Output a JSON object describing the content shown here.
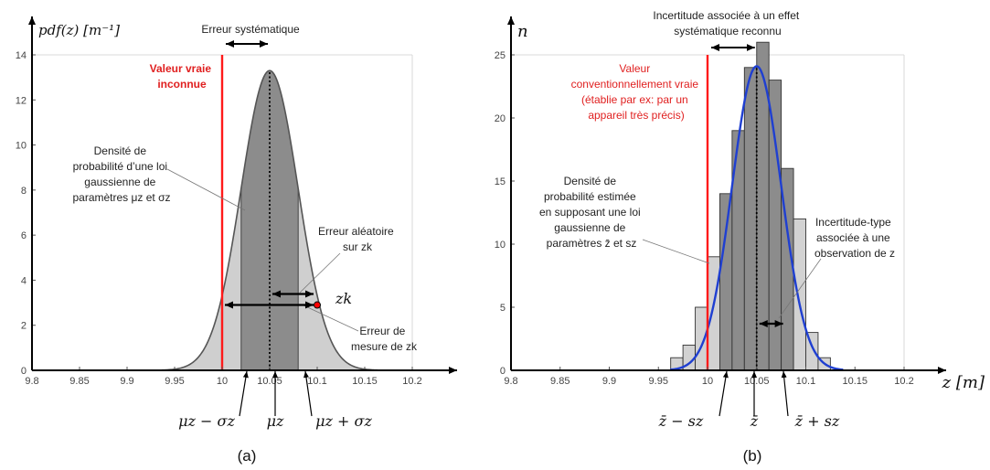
{
  "panel_a": {
    "y_axis_label": "pdf(z) [m⁻¹]",
    "caption": "(a)",
    "annotations": {
      "systematic_error": "Erreur systématique",
      "true_value": [
        "Valeur vraie",
        "inconnue"
      ],
      "density": [
        "Densité de",
        "probabilité d’une loi",
        "gaussienne de",
        "paramètres μz et σz"
      ],
      "random_error": [
        "Erreur aléatoire",
        "sur zk"
      ],
      "measurement_error": [
        "Erreur de",
        "mesure de zk"
      ],
      "point_label": "zk"
    },
    "below_labels": {
      "minus": "μz − σz",
      "mean": "μz",
      "plus": "μz + σz"
    }
  },
  "panel_b": {
    "y_axis_label": "n",
    "x_axis_label": "z [m]",
    "caption": "(b)",
    "annotations": {
      "systematic_uncertainty": [
        "Incertitude associée à un effet",
        "systématique reconnu"
      ],
      "conventional_value": [
        "Valeur",
        "conventionnellement vraie",
        "(établie par ex: par un",
        "appareil très précis)"
      ],
      "estimated_density": [
        "Densité de",
        "probabilité estimée",
        "en supposant une loi",
        "gaussienne de",
        "paramètres z̄ et sz"
      ],
      "standard_uncertainty": [
        "Incertitude-type",
        "associée à une",
        "observation de z"
      ]
    },
    "below_labels": {
      "minus": "z̄ − sz",
      "mean": "z̄",
      "plus": "z̄ + sz"
    }
  },
  "chart_data": [
    {
      "type": "area",
      "x_ticks": [
        "9.8",
        "9.85",
        "9.9",
        "9.95",
        "10",
        "10.05",
        "10.1",
        "10.15",
        "10.2"
      ],
      "y_ticks": [
        "0",
        "2",
        "4",
        "6",
        "8",
        "10",
        "12",
        "14"
      ],
      "xlim": [
        9.8,
        10.2
      ],
      "ylim": [
        0,
        14
      ],
      "mean": 10.05,
      "sigma": 0.03,
      "true_value": 10.0,
      "zk": 10.1,
      "zk_pdf": 2.9,
      "peak": 13.3
    },
    {
      "type": "bar",
      "x_ticks": [
        "9.8",
        "9.85",
        "9.9",
        "9.95",
        "10",
        "10.05",
        "10.1",
        "10.15",
        "10.2"
      ],
      "y_ticks": [
        "0",
        "5",
        "10",
        "15",
        "20",
        "25"
      ],
      "xlim": [
        9.8,
        10.2
      ],
      "ylim": [
        0,
        25
      ],
      "bin_width": 0.0125,
      "bin_left_edges": [
        9.9625,
        9.975,
        9.9875,
        10.0,
        10.0125,
        10.025,
        10.0375,
        10.05,
        10.0625,
        10.075,
        10.0875,
        10.1,
        10.1125
      ],
      "counts": [
        1,
        2,
        5,
        9,
        14,
        19,
        24,
        26,
        23,
        16,
        12,
        3,
        1
      ],
      "true_value": 10.0,
      "mean": 10.05,
      "s": 0.025,
      "fit_peak": 24.1
    }
  ]
}
